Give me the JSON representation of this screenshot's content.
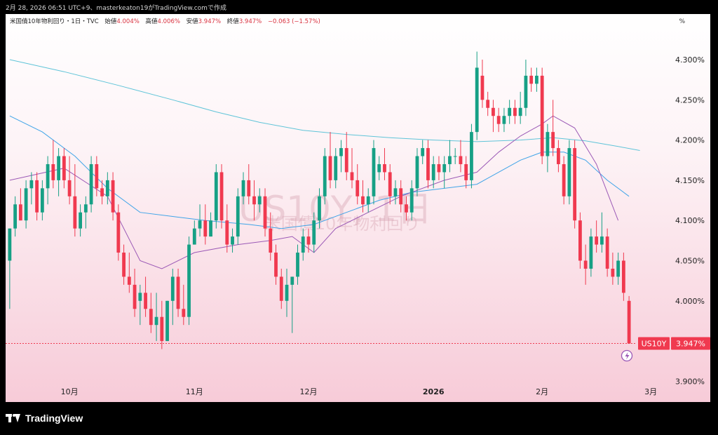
{
  "header": {
    "text": "2月 28, 2026 06:51 UTC+9、masterkeaton19がTradingView.comで作成"
  },
  "legend": {
    "title": "米国債10年物利回り・1日・TVC",
    "open_label": "始値",
    "open": "4.004%",
    "high_label": "高値",
    "high": "4.006%",
    "low_label": "安値",
    "low": "3.947%",
    "close_label": "終値",
    "close": "3.947%",
    "change": "−0.063 (−1.57%)"
  },
  "scale_unit": "%",
  "watermark": {
    "symbol": "US10Y, 1日",
    "name": "米国債10年物利回り"
  },
  "price_tag": {
    "symbol": "US10Y",
    "value": "3.947%"
  },
  "footer": {
    "brand": "TradingView"
  },
  "colors": {
    "up": "#16a085",
    "down": "#f0394f",
    "ma_fast": "#9b59b6",
    "ma_mid": "#3fa4e8",
    "ma_slow": "#5fc4d8",
    "last_line": "#f0394f"
  },
  "chart_data": {
    "type": "candlestick",
    "y_ticks": [
      "4.300%",
      "4.250%",
      "4.200%",
      "4.150%",
      "4.100%",
      "4.050%",
      "4.000%",
      "3.900%"
    ],
    "y_tick_values": [
      4.3,
      4.25,
      4.2,
      4.15,
      4.1,
      4.05,
      4.0,
      3.9
    ],
    "ylim": [
      3.895,
      4.325
    ],
    "x_labels": [
      {
        "label": "10月",
        "index": 11
      },
      {
        "label": "11月",
        "index": 34
      },
      {
        "label": "12月",
        "index": 55
      },
      {
        "label": "2026",
        "index": 78
      },
      {
        "label": "2月",
        "index": 98
      },
      {
        "label": "3月",
        "index": 118
      }
    ],
    "last_value": 3.947,
    "ohlc": [
      [
        4.05,
        4.09,
        3.99,
        4.09
      ],
      [
        4.09,
        4.13,
        4.08,
        4.12
      ],
      [
        4.12,
        4.14,
        4.1,
        4.1
      ],
      [
        4.1,
        4.15,
        4.09,
        4.14
      ],
      [
        4.14,
        4.16,
        4.12,
        4.15
      ],
      [
        4.15,
        4.16,
        4.1,
        4.11
      ],
      [
        4.11,
        4.15,
        4.1,
        4.14
      ],
      [
        4.14,
        4.18,
        4.12,
        4.17
      ],
      [
        4.17,
        4.2,
        4.14,
        4.15
      ],
      [
        4.15,
        4.19,
        4.13,
        4.18
      ],
      [
        4.18,
        4.19,
        4.14,
        4.15
      ],
      [
        4.15,
        4.18,
        4.12,
        4.13
      ],
      [
        4.13,
        4.17,
        4.08,
        4.09
      ],
      [
        4.09,
        4.12,
        4.08,
        4.11
      ],
      [
        4.11,
        4.13,
        4.09,
        4.12
      ],
      [
        4.12,
        4.18,
        4.11,
        4.17
      ],
      [
        4.17,
        4.18,
        4.13,
        4.14
      ],
      [
        4.14,
        4.15,
        4.12,
        4.13
      ],
      [
        4.13,
        4.16,
        4.12,
        4.15
      ],
      [
        4.15,
        4.16,
        4.1,
        4.11
      ],
      [
        4.11,
        4.12,
        4.05,
        4.06
      ],
      [
        4.06,
        4.07,
        4.02,
        4.03
      ],
      [
        4.03,
        4.06,
        4.01,
        4.02
      ],
      [
        4.02,
        4.04,
        3.98,
        3.99
      ],
      [
        4.0,
        4.02,
        3.97,
        4.01
      ],
      [
        4.01,
        4.03,
        3.98,
        3.99
      ],
      [
        3.99,
        4.01,
        3.96,
        3.97
      ],
      [
        3.97,
        4.01,
        3.95,
        3.98
      ],
      [
        3.98,
        4.0,
        3.94,
        3.95
      ],
      [
        3.95,
        4.0,
        3.95,
        4.0
      ],
      [
        4.0,
        4.04,
        3.97,
        4.03
      ],
      [
        4.03,
        4.04,
        3.98,
        3.99
      ],
      [
        3.99,
        4.02,
        3.97,
        3.98
      ],
      [
        3.98,
        4.08,
        3.97,
        4.07
      ],
      [
        4.07,
        4.1,
        4.07,
        4.09
      ],
      [
        4.09,
        4.12,
        4.08,
        4.1
      ],
      [
        4.1,
        4.12,
        4.07,
        4.08
      ],
      [
        4.08,
        4.11,
        4.08,
        4.1
      ],
      [
        4.1,
        4.17,
        4.09,
        4.16
      ],
      [
        4.16,
        4.17,
        4.09,
        4.1
      ],
      [
        4.1,
        4.12,
        4.06,
        4.07
      ],
      [
        4.07,
        4.09,
        4.06,
        4.08
      ],
      [
        4.08,
        4.14,
        4.07,
        4.13
      ],
      [
        4.13,
        4.16,
        4.12,
        4.15
      ],
      [
        4.15,
        4.17,
        4.12,
        4.13
      ],
      [
        4.13,
        4.15,
        4.1,
        4.12
      ],
      [
        4.12,
        4.14,
        4.11,
        4.13
      ],
      [
        4.13,
        4.14,
        4.08,
        4.09
      ],
      [
        4.09,
        4.11,
        4.05,
        4.06
      ],
      [
        4.06,
        4.07,
        4.02,
        4.03
      ],
      [
        4.03,
        4.04,
        3.99,
        4.0
      ],
      [
        4.0,
        4.04,
        3.98,
        4.02
      ],
      [
        4.02,
        4.03,
        3.96,
        4.03
      ],
      [
        4.03,
        4.07,
        4.02,
        4.06
      ],
      [
        4.06,
        4.09,
        4.05,
        4.08
      ],
      [
        4.08,
        4.09,
        4.06,
        4.07
      ],
      [
        4.07,
        4.11,
        4.06,
        4.1
      ],
      [
        4.1,
        4.14,
        4.09,
        4.13
      ],
      [
        4.13,
        4.19,
        4.12,
        4.18
      ],
      [
        4.18,
        4.21,
        4.14,
        4.15
      ],
      [
        4.15,
        4.19,
        4.14,
        4.18
      ],
      [
        4.18,
        4.2,
        4.16,
        4.19
      ],
      [
        4.19,
        4.21,
        4.15,
        4.16
      ],
      [
        4.16,
        4.19,
        4.14,
        4.15
      ],
      [
        4.15,
        4.17,
        4.12,
        4.13
      ],
      [
        4.13,
        4.15,
        4.11,
        4.12
      ],
      [
        4.12,
        4.14,
        4.11,
        4.13
      ],
      [
        4.13,
        4.2,
        4.12,
        4.19
      ],
      [
        4.16,
        4.18,
        4.15,
        4.17
      ],
      [
        4.17,
        4.19,
        4.15,
        4.16
      ],
      [
        4.16,
        4.17,
        4.12,
        4.13
      ],
      [
        4.13,
        4.15,
        4.12,
        4.14
      ],
      [
        4.14,
        4.15,
        4.11,
        4.12
      ],
      [
        4.12,
        4.13,
        4.1,
        4.11
      ],
      [
        4.11,
        4.15,
        4.1,
        4.14
      ],
      [
        4.14,
        4.19,
        4.13,
        4.18
      ],
      [
        4.18,
        4.2,
        4.17,
        4.19
      ],
      [
        4.19,
        4.2,
        4.14,
        4.15
      ],
      [
        4.15,
        4.18,
        4.14,
        4.17
      ],
      [
        4.17,
        4.18,
        4.15,
        4.16
      ],
      [
        4.16,
        4.18,
        4.14,
        4.17
      ],
      [
        4.17,
        4.2,
        4.16,
        4.18
      ],
      [
        4.18,
        4.19,
        4.17,
        4.18
      ],
      [
        4.18,
        4.2,
        4.16,
        4.17
      ],
      [
        4.17,
        4.18,
        4.14,
        4.15
      ],
      [
        4.15,
        4.22,
        4.14,
        4.21
      ],
      [
        4.21,
        4.31,
        4.2,
        4.29
      ],
      [
        4.28,
        4.3,
        4.24,
        4.25
      ],
      [
        4.25,
        4.26,
        4.23,
        4.24
      ],
      [
        4.24,
        4.25,
        4.21,
        4.23
      ],
      [
        4.23,
        4.24,
        4.21,
        4.22
      ],
      [
        4.22,
        4.24,
        4.21,
        4.23
      ],
      [
        4.23,
        4.25,
        4.22,
        4.24
      ],
      [
        4.24,
        4.25,
        4.22,
        4.23
      ],
      [
        4.23,
        4.26,
        4.22,
        4.24
      ],
      [
        4.24,
        4.3,
        4.23,
        4.28
      ],
      [
        4.28,
        4.29,
        4.26,
        4.27
      ],
      [
        4.27,
        4.29,
        4.26,
        4.28
      ],
      [
        4.28,
        4.29,
        4.17,
        4.18
      ],
      [
        4.18,
        4.22,
        4.16,
        4.21
      ],
      [
        4.21,
        4.25,
        4.18,
        4.19
      ],
      [
        4.19,
        4.2,
        4.16,
        4.17
      ],
      [
        4.17,
        4.18,
        4.12,
        4.13
      ],
      [
        4.13,
        4.2,
        4.12,
        4.19
      ],
      [
        4.19,
        4.2,
        4.09,
        4.1
      ],
      [
        4.1,
        4.11,
        4.04,
        4.05
      ],
      [
        4.05,
        4.07,
        4.02,
        4.04
      ],
      [
        4.04,
        4.09,
        4.03,
        4.08
      ],
      [
        4.08,
        4.1,
        4.06,
        4.07
      ],
      [
        4.07,
        4.11,
        4.06,
        4.08
      ],
      [
        4.08,
        4.09,
        4.03,
        4.04
      ],
      [
        4.04,
        4.06,
        4.02,
        4.03
      ],
      [
        4.03,
        4.06,
        4.02,
        4.05
      ],
      [
        4.05,
        4.06,
        4.0,
        4.01
      ],
      [
        4.0,
        4.006,
        3.947,
        3.947
      ]
    ],
    "ma_fast": [
      [
        0,
        4.15
      ],
      [
        10,
        4.165
      ],
      [
        18,
        4.13
      ],
      [
        24,
        4.05
      ],
      [
        28,
        4.04
      ],
      [
        34,
        4.06
      ],
      [
        42,
        4.07
      ],
      [
        48,
        4.075
      ],
      [
        52,
        4.08
      ],
      [
        56,
        4.06
      ],
      [
        60,
        4.09
      ],
      [
        66,
        4.11
      ],
      [
        72,
        4.13
      ],
      [
        80,
        4.15
      ],
      [
        86,
        4.16
      ],
      [
        90,
        4.185
      ],
      [
        94,
        4.205
      ],
      [
        98,
        4.22
      ],
      [
        100,
        4.23
      ],
      [
        104,
        4.215
      ],
      [
        108,
        4.17
      ],
      [
        112,
        4.1
      ]
    ],
    "ma_mid": [
      [
        0,
        4.23
      ],
      [
        6,
        4.21
      ],
      [
        12,
        4.18
      ],
      [
        18,
        4.14
      ],
      [
        24,
        4.11
      ],
      [
        30,
        4.105
      ],
      [
        36,
        4.1
      ],
      [
        44,
        4.095
      ],
      [
        50,
        4.09
      ],
      [
        56,
        4.095
      ],
      [
        62,
        4.11
      ],
      [
        68,
        4.125
      ],
      [
        74,
        4.135
      ],
      [
        80,
        4.14
      ],
      [
        86,
        4.145
      ],
      [
        90,
        4.16
      ],
      [
        94,
        4.175
      ],
      [
        98,
        4.185
      ],
      [
        102,
        4.185
      ],
      [
        106,
        4.175
      ],
      [
        110,
        4.15
      ],
      [
        114,
        4.13
      ]
    ],
    "ma_slow": [
      [
        0,
        4.3
      ],
      [
        10,
        4.285
      ],
      [
        20,
        4.268
      ],
      [
        30,
        4.25
      ],
      [
        38,
        4.235
      ],
      [
        46,
        4.222
      ],
      [
        54,
        4.212
      ],
      [
        62,
        4.207
      ],
      [
        70,
        4.203
      ],
      [
        78,
        4.2
      ],
      [
        86,
        4.198
      ],
      [
        94,
        4.2
      ],
      [
        100,
        4.203
      ],
      [
        106,
        4.199
      ],
      [
        112,
        4.192
      ],
      [
        116,
        4.187
      ]
    ]
  }
}
